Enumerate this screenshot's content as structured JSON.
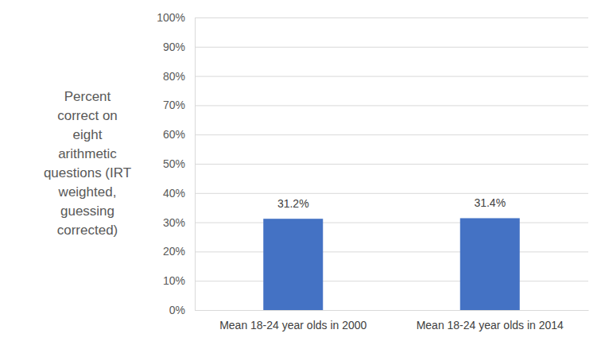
{
  "chart_data": {
    "type": "bar",
    "ylabel": [
      "Percent",
      "correct on",
      "eight",
      "arithmetic",
      "questions (IRT",
      "weighted,",
      "guessing",
      "corrected)"
    ],
    "categories": [
      "Mean 18-24 year olds in 2000",
      "Mean 18-24 year olds in 2014"
    ],
    "values": [
      31.2,
      31.4
    ],
    "value_labels": [
      "31.2%",
      "31.4%"
    ],
    "data_labels": true,
    "color": "#4472c4",
    "ylim": [
      0,
      100
    ],
    "yticks": [
      {
        "value": 0,
        "label": "0%"
      },
      {
        "value": 10,
        "label": "10%"
      },
      {
        "value": 20,
        "label": "20%"
      },
      {
        "value": 30,
        "label": "30%"
      },
      {
        "value": 40,
        "label": "40%"
      },
      {
        "value": 50,
        "label": "50%"
      },
      {
        "value": 60,
        "label": "60%"
      },
      {
        "value": 70,
        "label": "70%"
      },
      {
        "value": 80,
        "label": "80%"
      },
      {
        "value": 90,
        "label": "90%"
      },
      {
        "value": 100,
        "label": "100%"
      }
    ],
    "grid": true
  }
}
